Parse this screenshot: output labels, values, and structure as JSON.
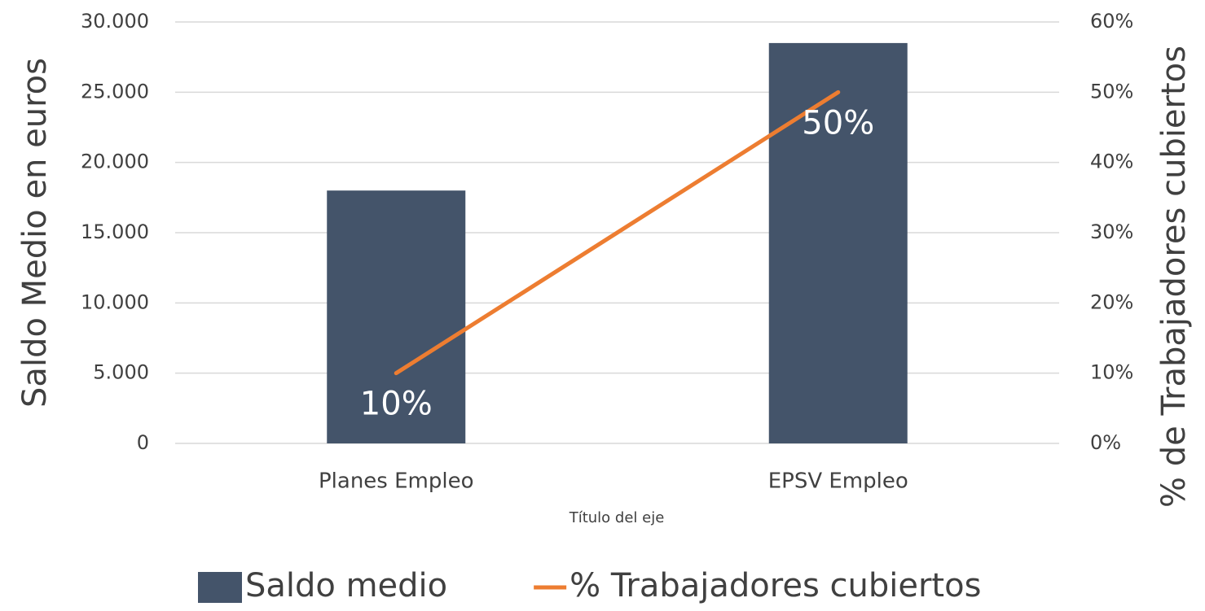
{
  "chart_data": {
    "type": "bar",
    "categories": [
      "Planes Empleo",
      "EPSV Empleo"
    ],
    "series": [
      {
        "name": "Saldo medio",
        "type": "bar",
        "color": "#44546a",
        "values": [
          18000,
          28500
        ]
      },
      {
        "name": "% Trabajadores cubiertos",
        "type": "line",
        "axis": "y2",
        "color": "#ed7d31",
        "values": [
          10,
          50
        ],
        "value_labels": [
          "10%",
          "50%"
        ]
      }
    ],
    "x_label": "Título del eje",
    "y_label": "Saldo Medio en euros",
    "y2_label": "% de Trabajadores cubiertos",
    "ylim": [
      0,
      30000
    ],
    "yticks": [
      0,
      {
        "value": 5000,
        "label": "5.000"
      },
      {
        "value": 10000,
        "label": "10.000"
      },
      {
        "value": 15000,
        "label": "15.000"
      },
      {
        "value": 20000,
        "label": "20.000"
      },
      {
        "value": 25000,
        "label": "25.000"
      },
      {
        "value": 30000,
        "label": "30.000"
      }
    ],
    "y2lim": [
      0,
      60
    ],
    "y2ticks": [
      {
        "value": 0,
        "label": "0%"
      },
      {
        "value": 10,
        "label": "10%"
      },
      {
        "value": 20,
        "label": "20%"
      },
      {
        "value": 30,
        "label": "30%"
      },
      {
        "value": 40,
        "label": "40%"
      },
      {
        "value": 50,
        "label": "50%"
      },
      {
        "value": 60,
        "label": "60%"
      }
    ],
    "grid": true,
    "legend": "bottom"
  }
}
